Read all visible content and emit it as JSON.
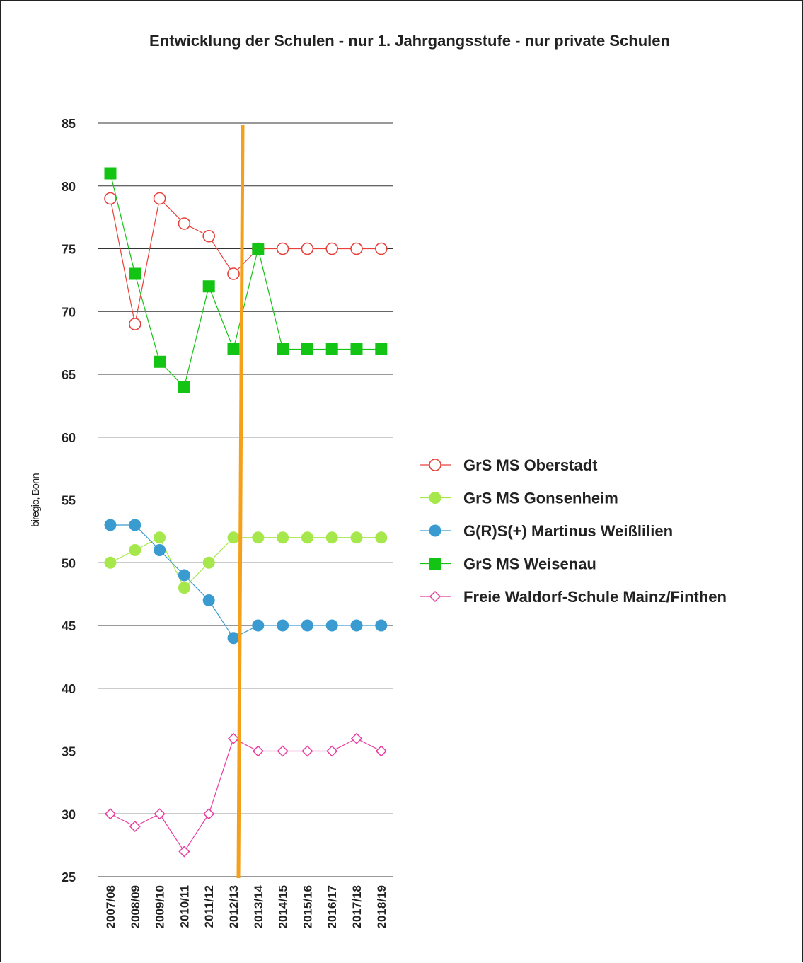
{
  "chart_data": {
    "type": "line",
    "title": "Entwicklung der Schulen - nur 1. Jahrgangsstufe - nur private Schulen",
    "ylabel": "biregio, Bonn",
    "xlabel": "",
    "ylim": [
      25,
      85
    ],
    "yticks": [
      85,
      80,
      75,
      70,
      65,
      60,
      55,
      50,
      45,
      40,
      35,
      30,
      25
    ],
    "grid": true,
    "legend_position": "right",
    "categories": [
      "2007/08",
      "2008/09",
      "2009/10",
      "2010/11",
      "2011/12",
      "2012/13",
      "2013/14",
      "2014/15",
      "2015/16",
      "2016/17",
      "2017/18",
      "2018/19"
    ],
    "vertical_marker_between": [
      "2012/13",
      "2013/14"
    ],
    "vertical_marker_color": "#f5a01a",
    "series": [
      {
        "name": "GrS MS Oberstadt",
        "color": "#e8413c",
        "marker": "open-circle",
        "values": [
          79,
          69,
          79,
          77,
          76,
          73,
          75,
          75,
          75,
          75,
          75,
          75
        ]
      },
      {
        "name": "GrS MS Gonsenheim",
        "color": "#a6e84c",
        "marker": "filled-circle",
        "values": [
          50,
          51,
          52,
          48,
          50,
          52,
          52,
          52,
          52,
          52,
          52,
          52
        ]
      },
      {
        "name": "G(R)S(+) Martinus Weißlilien",
        "color": "#3a9bd0",
        "marker": "filled-circle",
        "values": [
          53,
          53,
          51,
          49,
          47,
          44,
          45,
          45,
          45,
          45,
          45,
          45
        ]
      },
      {
        "name": "GrS MS Weisenau",
        "color": "#14c414",
        "marker": "filled-square",
        "values": [
          81,
          73,
          66,
          64,
          72,
          67,
          75,
          67,
          67,
          67,
          67,
          67
        ]
      },
      {
        "name": "Freie Waldorf-Schule Mainz/Finthen",
        "color": "#e83ca0",
        "marker": "open-diamond",
        "values": [
          30,
          29,
          30,
          27,
          30,
          36,
          35,
          35,
          35,
          35,
          36,
          35
        ]
      }
    ]
  }
}
